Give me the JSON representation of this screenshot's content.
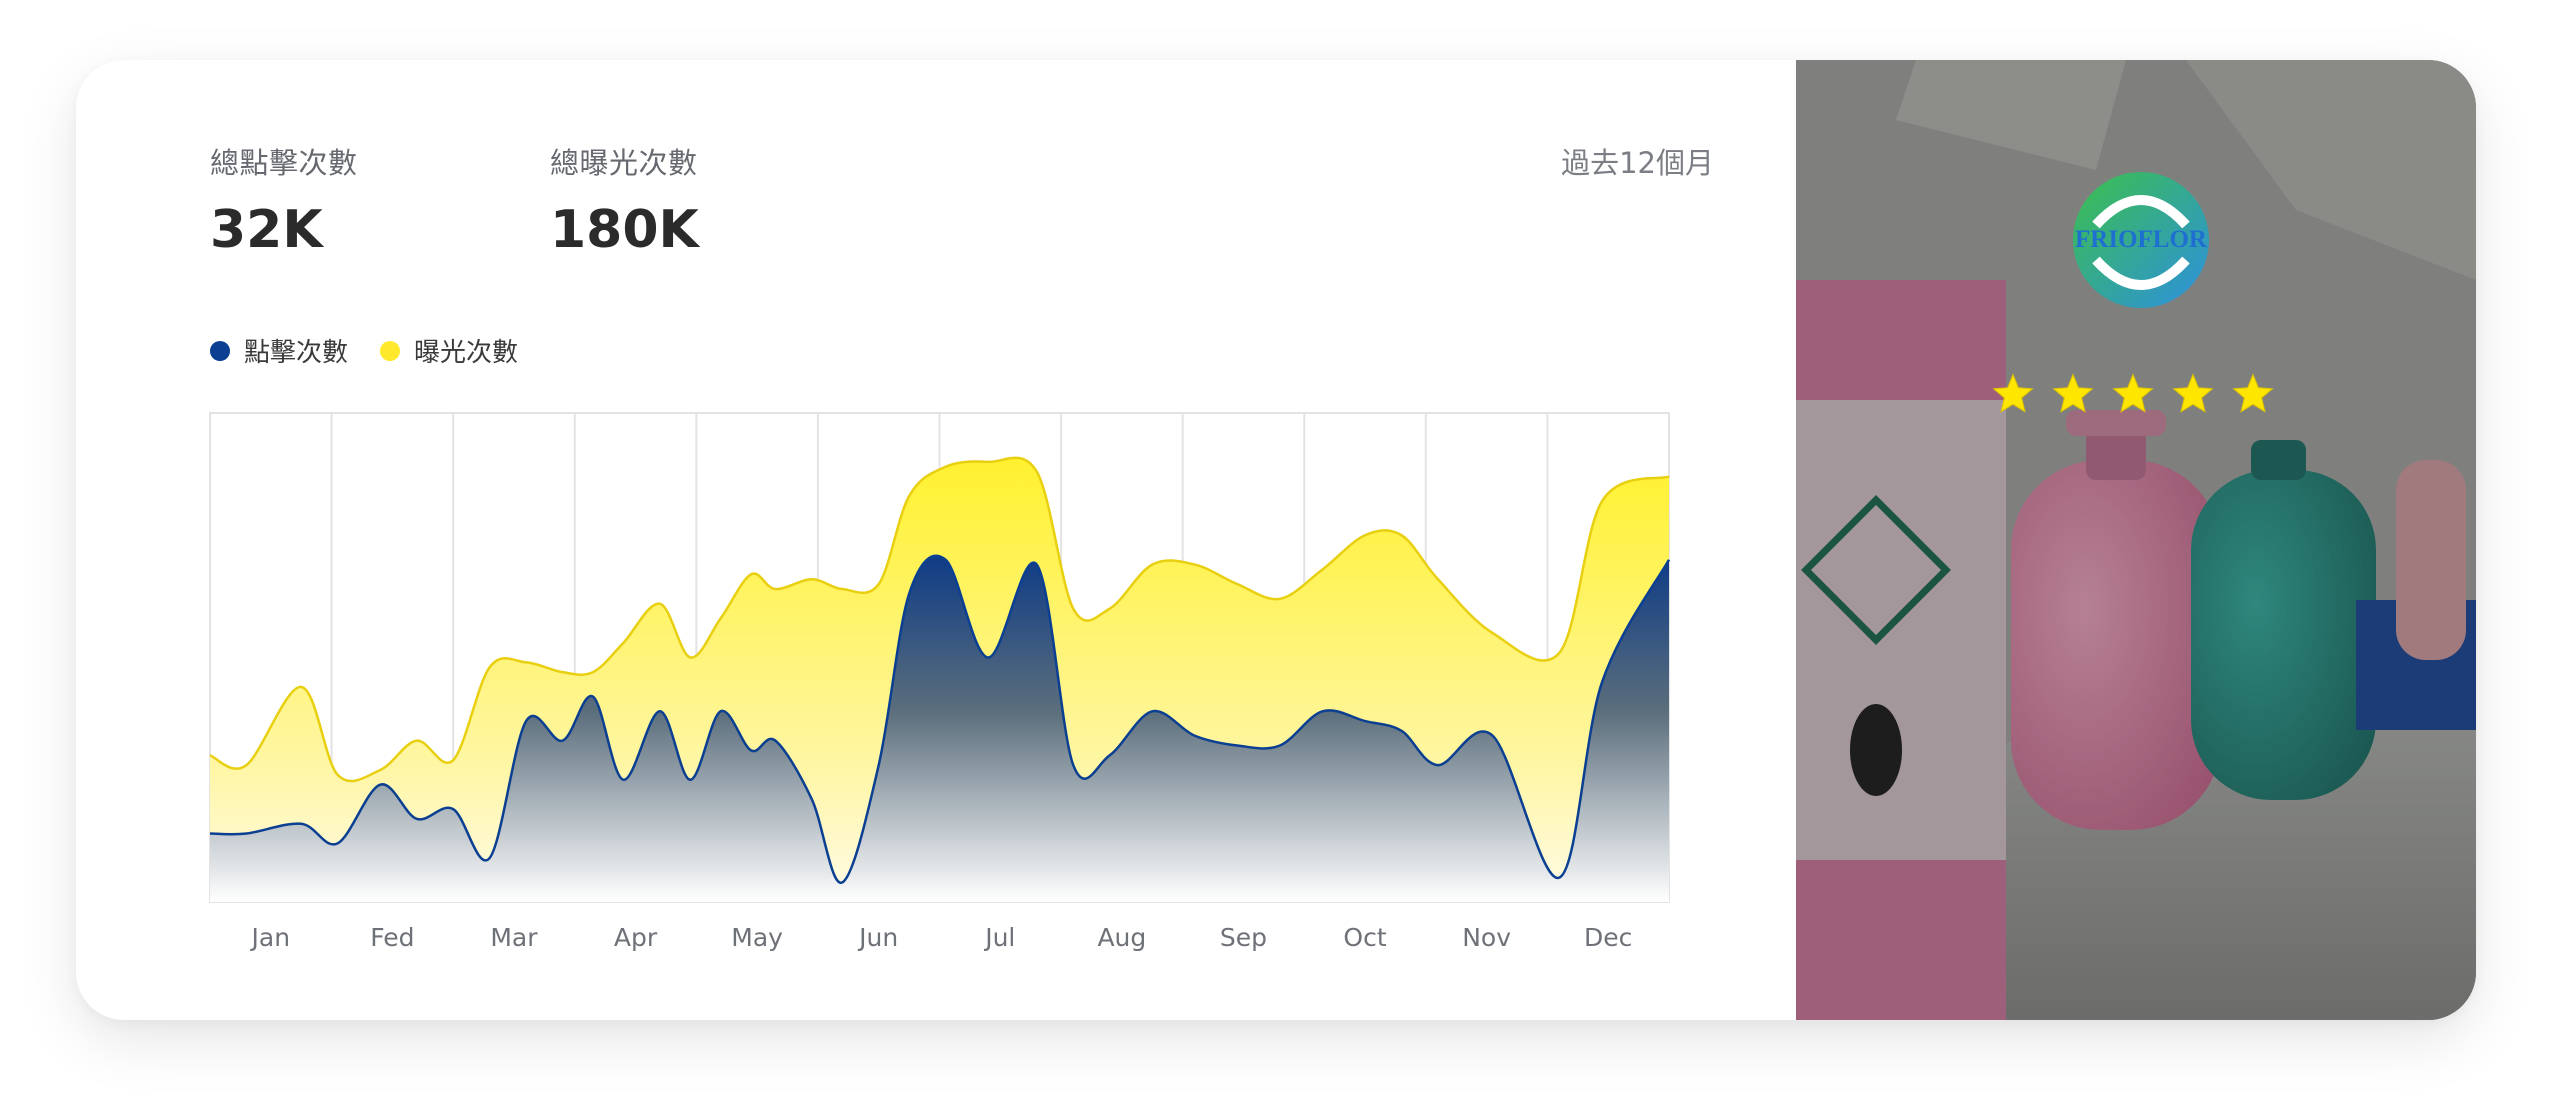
{
  "kpis": [
    {
      "label": "總點擊次數",
      "value": "32K"
    },
    {
      "label": "總曝光次數",
      "value": "180K"
    }
  ],
  "period": "過去12個月",
  "colors": {
    "clicks": "#0b3f91",
    "impressions": "#ffe92a",
    "grid": "#e3e3e3"
  },
  "chart_data": {
    "type": "area",
    "categories": [
      "Jan",
      "Fed",
      "Mar",
      "Apr",
      "May",
      "Jun",
      "Jul",
      "Aug",
      "Sep",
      "Oct",
      "Nov",
      "Dec"
    ],
    "x": [
      0,
      0.3,
      0.75,
      1.05,
      1.4,
      1.7,
      2.0,
      2.3,
      2.6,
      2.9,
      3.15,
      3.4,
      3.7,
      3.95,
      4.2,
      4.45,
      4.65,
      4.95,
      5.2,
      5.5,
      5.75,
      6.05,
      6.4,
      6.8,
      7.1,
      7.4,
      7.75,
      8.1,
      8.45,
      8.8,
      9.15,
      9.5,
      9.8,
      10.1,
      10.55,
      11.1,
      11.45,
      12
    ],
    "ylim": [
      0,
      100
    ],
    "grid": true,
    "legend_position": "top-left",
    "series": [
      {
        "name": "點擊次數",
        "color": "#0b3f91",
        "values": [
          14,
          14,
          16,
          12,
          24,
          17,
          19,
          9,
          37,
          33,
          42,
          25,
          39,
          25,
          39,
          31,
          33,
          21,
          4,
          28,
          63,
          70,
          50,
          69,
          28,
          30,
          39,
          34,
          32,
          32,
          39,
          37,
          35,
          28,
          34,
          5,
          45,
          70
        ]
      },
      {
        "name": "曝光次數",
        "color": "#ffe92a",
        "values": [
          30,
          28,
          44,
          26,
          27,
          33,
          29,
          48,
          49,
          47,
          47,
          53,
          61,
          50,
          58,
          67,
          64,
          66,
          64,
          65,
          83,
          89,
          90,
          88,
          60,
          60,
          69,
          69,
          65,
          62,
          68,
          75,
          75,
          66,
          55,
          51,
          82,
          87
        ]
      }
    ]
  },
  "panel": {
    "logo_text": "FRIOFLOR",
    "rating": 5
  }
}
